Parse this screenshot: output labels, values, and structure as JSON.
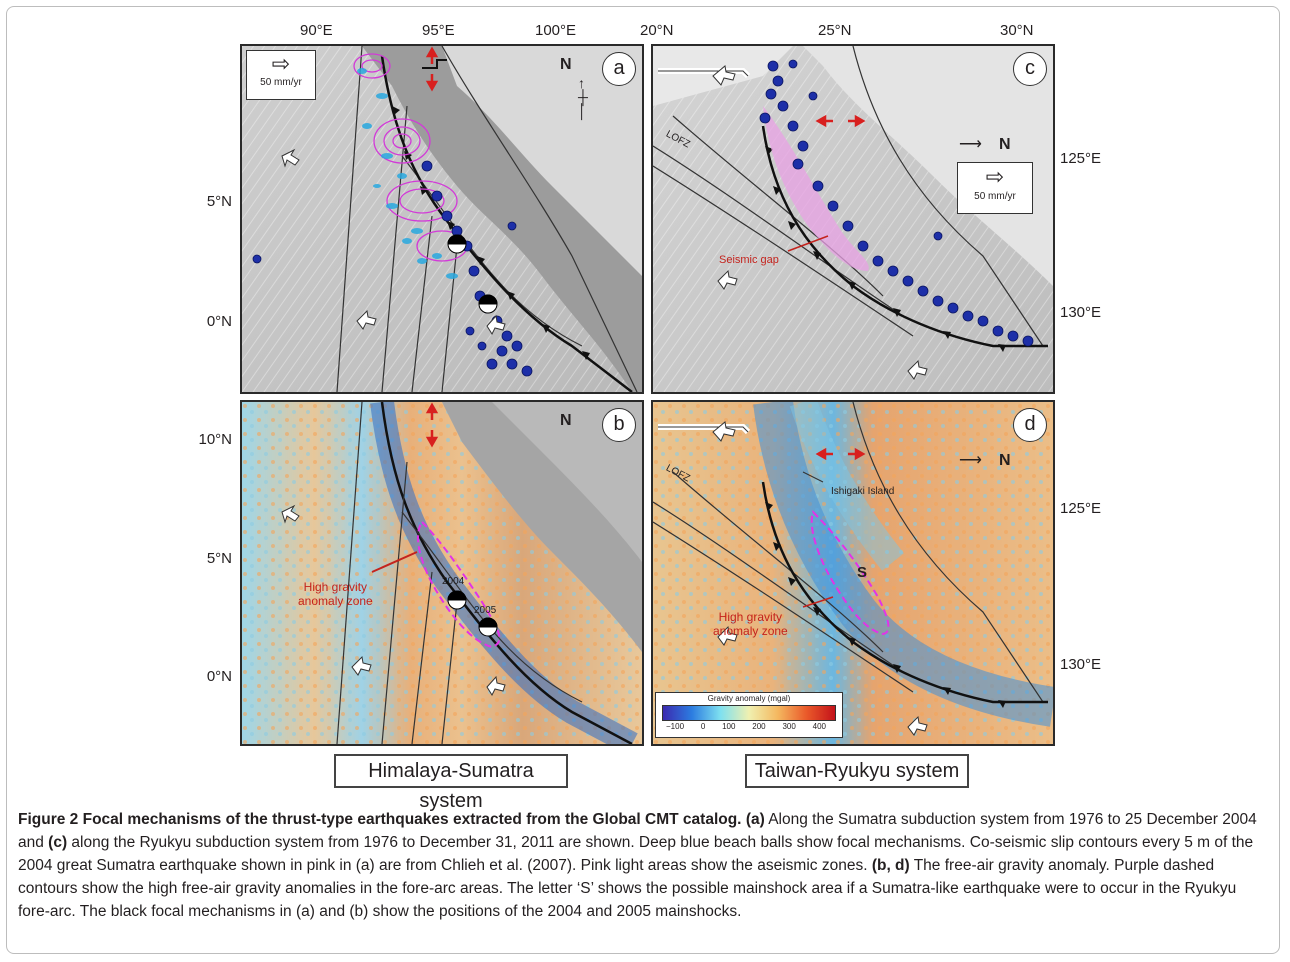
{
  "axes": {
    "top_left": [
      "90°E",
      "95°E",
      "100°E"
    ],
    "top_right": [
      "20°N",
      "25°N",
      "30°N"
    ],
    "left": [
      "10°N",
      "5°N",
      "0°N"
    ],
    "right": [
      "125°E",
      "130°E"
    ]
  },
  "panels": {
    "a": {
      "label": "a",
      "north": "N",
      "scale": "50 mm/yr"
    },
    "b": {
      "label": "b",
      "north": "N",
      "annotation": "High gravity\nanomaly zone",
      "year_2004": "2004",
      "year_2005": "2005"
    },
    "c": {
      "label": "c",
      "north": "N",
      "scale": "50 mm/yr",
      "lofz": "LOFZ",
      "gap": "Seismic gap"
    },
    "d": {
      "label": "d",
      "north": "N",
      "lofz": "LOFZ",
      "island": "Ishigaki Island",
      "s": "S",
      "annotation": "High gravity\nanomaly zone",
      "colorbar": {
        "title": "Gravity anomaly (mgal)",
        "ticks": [
          "−100",
          "0",
          "100",
          "200",
          "300",
          "400"
        ]
      }
    }
  },
  "systems": {
    "left": "Himalaya-Sumatra system",
    "right": "Taiwan-Ryukyu system"
  },
  "caption": {
    "title": "Figure 2 Focal mechanisms of the thrust-type earthquakes extracted from the Global CMT catalog.",
    "p1_label": "(a)",
    "p1": " Along the Sumatra subduction system from 1976 to 25 December 2004 and ",
    "p2_label": "(c)",
    "p2": " along the Ryukyu subduction system from 1976 to December 31, 2011 are shown. Deep blue beach balls show focal mechanisms. Co-seismic slip contours every 5 m of the 2004 great Sumatra earthquake shown in pink in (a) are from Chlieh et al. (2007). Pink light areas show the aseismic zones. ",
    "p3_label": "(b, d)",
    "p3": " The free-air gravity anomaly. Purple dashed contours show the high free-air gravity anomalies in the fore-arc areas. The letter ‘S’ shows the possible mainshock area if a Sumatra-like earthquake were to occur in the Ryukyu fore-arc. The black focal mechanisms in (a) and (b) show the positions of the 2004 and 2005 mainshocks."
  }
}
